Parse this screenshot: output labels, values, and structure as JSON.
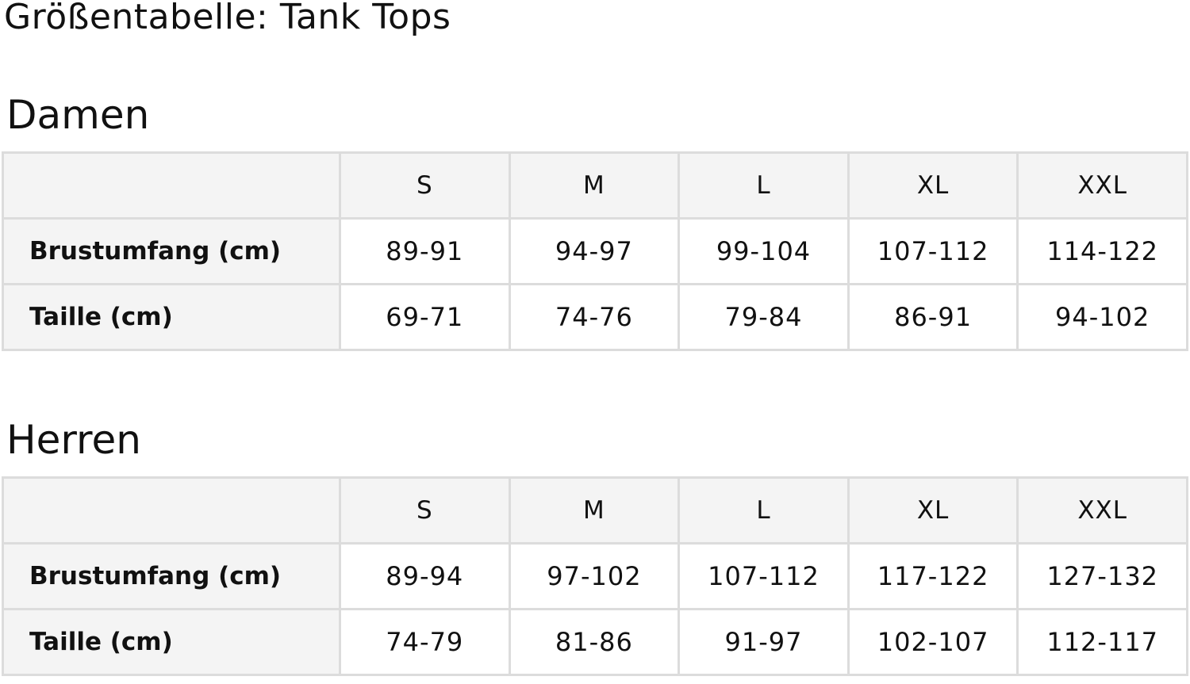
{
  "title": "Größentabelle: Tank Tops",
  "tables": [
    {
      "heading": "Damen",
      "sizes": [
        "S",
        "M",
        "L",
        "XL",
        "XXL"
      ],
      "rows": [
        {
          "label": "Brustumfang (cm)",
          "values": [
            "89-91",
            "94-97",
            "99-104",
            "107-112",
            "114-122"
          ]
        },
        {
          "label": "Taille (cm)",
          "values": [
            "69-71",
            "74-76",
            "79-84",
            "86-91",
            "94-102"
          ]
        }
      ]
    },
    {
      "heading": "Herren",
      "sizes": [
        "S",
        "M",
        "L",
        "XL",
        "XXL"
      ],
      "rows": [
        {
          "label": "Brustumfang (cm)",
          "values": [
            "89-94",
            "97-102",
            "107-112",
            "117-122",
            "127-132"
          ]
        },
        {
          "label": "Taille (cm)",
          "values": [
            "74-79",
            "81-86",
            "91-97",
            "102-107",
            "112-117"
          ]
        }
      ]
    }
  ]
}
